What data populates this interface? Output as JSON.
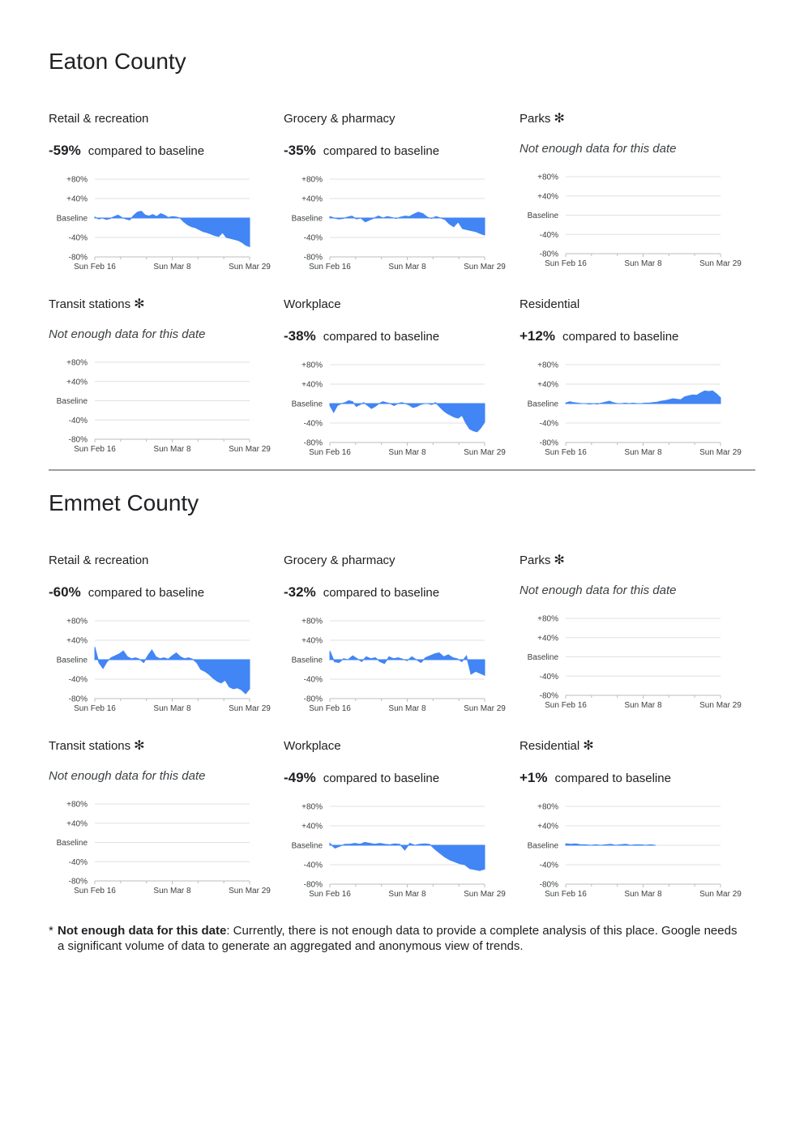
{
  "colors": {
    "fill": "#4285f4",
    "grid": "#e0e0e0",
    "axis": "#bdbdbd"
  },
  "axis_labels": {
    "y": [
      "+80%",
      "+40%",
      "Baseline",
      "-40%",
      "-80%"
    ],
    "x": [
      "Sun Feb 16",
      "Sun Mar 8",
      "Sun Mar 29"
    ]
  },
  "compared_text": "compared to baseline",
  "no_data_text": "Not enough data for this date",
  "asterisk_icon": "asterisk-icon",
  "counties": [
    {
      "name": "Eaton County",
      "panels": [
        {
          "title": "Retail & recreation",
          "asterisk": false,
          "summary": "-59%"
        },
        {
          "title": "Grocery & pharmacy",
          "asterisk": false,
          "summary": "-35%"
        },
        {
          "title": "Parks",
          "asterisk": true,
          "summary": null
        },
        {
          "title": "Transit stations",
          "asterisk": true,
          "summary": null
        },
        {
          "title": "Workplace",
          "asterisk": false,
          "summary": "-38%"
        },
        {
          "title": "Residential",
          "asterisk": false,
          "summary": "+12%"
        }
      ]
    },
    {
      "name": "Emmet County",
      "panels": [
        {
          "title": "Retail & recreation",
          "asterisk": false,
          "summary": "-60%"
        },
        {
          "title": "Grocery & pharmacy",
          "asterisk": false,
          "summary": "-32%"
        },
        {
          "title": "Parks",
          "asterisk": true,
          "summary": null
        },
        {
          "title": "Transit stations",
          "asterisk": true,
          "summary": null
        },
        {
          "title": "Workplace",
          "asterisk": false,
          "summary": "-49%"
        },
        {
          "title": "Residential",
          "asterisk": true,
          "summary": "+1%"
        }
      ]
    }
  ],
  "footnote": {
    "star": "*",
    "bold": "Not enough data for this date",
    "text": ": Currently, there is not enough data to provide a complete analysis of this place. Google needs a significant volume of data to generate an aggregated and anonymous view of trends."
  },
  "chart_data": [
    {
      "type": "area",
      "county": "Eaton County",
      "category": "Retail & recreation",
      "ylim": [
        -80,
        80
      ],
      "x_start": "Sun Feb 16",
      "x_end": "Sun Mar 29",
      "values": [
        2,
        -2,
        0,
        -3,
        -1,
        3,
        6,
        1,
        -2,
        -4,
        5,
        12,
        14,
        6,
        4,
        7,
        3,
        9,
        6,
        1,
        3,
        2,
        0,
        -8,
        -14,
        -18,
        -20,
        -24,
        -28,
        -30,
        -33,
        -36,
        -38,
        -30,
        -40,
        -42,
        -44,
        -46,
        -50,
        -56,
        -59
      ]
    },
    {
      "type": "area",
      "county": "Eaton County",
      "category": "Grocery & pharmacy",
      "ylim": [
        -80,
        80
      ],
      "x_start": "Sun Feb 16",
      "x_end": "Sun Mar 29",
      "values": [
        3,
        0,
        -2,
        -1,
        2,
        4,
        -2,
        0,
        -8,
        -4,
        0,
        4,
        0,
        3,
        1,
        -1,
        2,
        4,
        3,
        8,
        12,
        9,
        2,
        -1,
        3,
        0,
        -3,
        -12,
        -18,
        -8,
        -22,
        -24,
        -26,
        -28,
        -32,
        -35
      ]
    },
    {
      "type": "area",
      "county": "Eaton County",
      "category": "Parks",
      "ylim": [
        -80,
        80
      ],
      "values": []
    },
    {
      "type": "area",
      "county": "Eaton County",
      "category": "Transit stations",
      "ylim": [
        -80,
        80
      ],
      "values": []
    },
    {
      "type": "area",
      "county": "Eaton County",
      "category": "Workplace",
      "ylim": [
        -80,
        80
      ],
      "x_start": "Sun Feb 16",
      "x_end": "Sun Mar 29",
      "values": [
        -4,
        -18,
        -4,
        0,
        2,
        6,
        4,
        -6,
        -2,
        2,
        -4,
        -10,
        -6,
        0,
        4,
        2,
        0,
        -4,
        0,
        2,
        0,
        -3,
        -8,
        -6,
        -2,
        0,
        0,
        -2,
        2,
        -6,
        -14,
        -20,
        -24,
        -28,
        -30,
        -24,
        -40,
        -52,
        -56,
        -58,
        -50,
        -38
      ]
    },
    {
      "type": "area",
      "county": "Eaton County",
      "category": "Residential",
      "ylim": [
        -80,
        80
      ],
      "x_start": "Sun Feb 16",
      "x_end": "Sun Mar 29",
      "values": [
        1,
        4,
        2,
        1,
        0,
        0,
        -1,
        0,
        -1,
        1,
        3,
        5,
        2,
        0,
        0,
        1,
        0,
        1,
        0,
        0,
        1,
        1,
        2,
        3,
        5,
        6,
        8,
        10,
        9,
        8,
        14,
        16,
        18,
        17,
        22,
        26,
        25,
        26,
        20,
        12
      ]
    },
    {
      "type": "area",
      "county": "Emmet County",
      "category": "Retail & recreation",
      "ylim": [
        -80,
        80
      ],
      "x_start": "Sun Feb 16",
      "x_end": "Sun Mar 29",
      "values": [
        26,
        -6,
        -18,
        -4,
        4,
        8,
        12,
        18,
        6,
        2,
        4,
        1,
        -6,
        8,
        20,
        6,
        2,
        4,
        1,
        8,
        14,
        6,
        2,
        4,
        1,
        -6,
        -20,
        -24,
        -30,
        -38,
        -44,
        -48,
        -42,
        -56,
        -60,
        -58,
        -62,
        -70,
        -60
      ]
    },
    {
      "type": "area",
      "county": "Emmet County",
      "category": "Grocery & pharmacy",
      "ylim": [
        -80,
        80
      ],
      "x_start": "Sun Feb 16",
      "x_end": "Sun Mar 29",
      "values": [
        18,
        -4,
        -6,
        2,
        0,
        8,
        2,
        -4,
        6,
        2,
        4,
        -4,
        -8,
        6,
        2,
        4,
        1,
        -2,
        6,
        0,
        -6,
        4,
        8,
        12,
        14,
        6,
        10,
        4,
        2,
        -4,
        8,
        -30,
        -24,
        -28,
        -32
      ]
    },
    {
      "type": "area",
      "county": "Emmet County",
      "category": "Parks",
      "ylim": [
        -80,
        80
      ],
      "values": []
    },
    {
      "type": "area",
      "county": "Emmet County",
      "category": "Transit stations",
      "ylim": [
        -80,
        80
      ],
      "values": []
    },
    {
      "type": "area",
      "county": "Emmet County",
      "category": "Workplace",
      "ylim": [
        -80,
        80
      ],
      "x_start": "Sun Feb 16",
      "x_end": "Sun Mar 29",
      "values": [
        4,
        -6,
        -2,
        2,
        2,
        4,
        2,
        6,
        4,
        2,
        4,
        2,
        1,
        3,
        2,
        -10,
        4,
        0,
        2,
        3,
        2,
        -8,
        -16,
        -24,
        -30,
        -34,
        -38,
        -40,
        -48,
        -50,
        -52,
        -49
      ]
    },
    {
      "type": "area",
      "county": "Emmet County",
      "category": "Residential",
      "ylim": [
        -80,
        80
      ],
      "x_start": "Sun Feb 16",
      "x_end": "Sun Mar 29",
      "x_end_visible_fraction": 0.58,
      "values": [
        3,
        2,
        3,
        1,
        1,
        0,
        1,
        0,
        1,
        2,
        0,
        1,
        2,
        0,
        1,
        1,
        0,
        1,
        0
      ]
    }
  ]
}
